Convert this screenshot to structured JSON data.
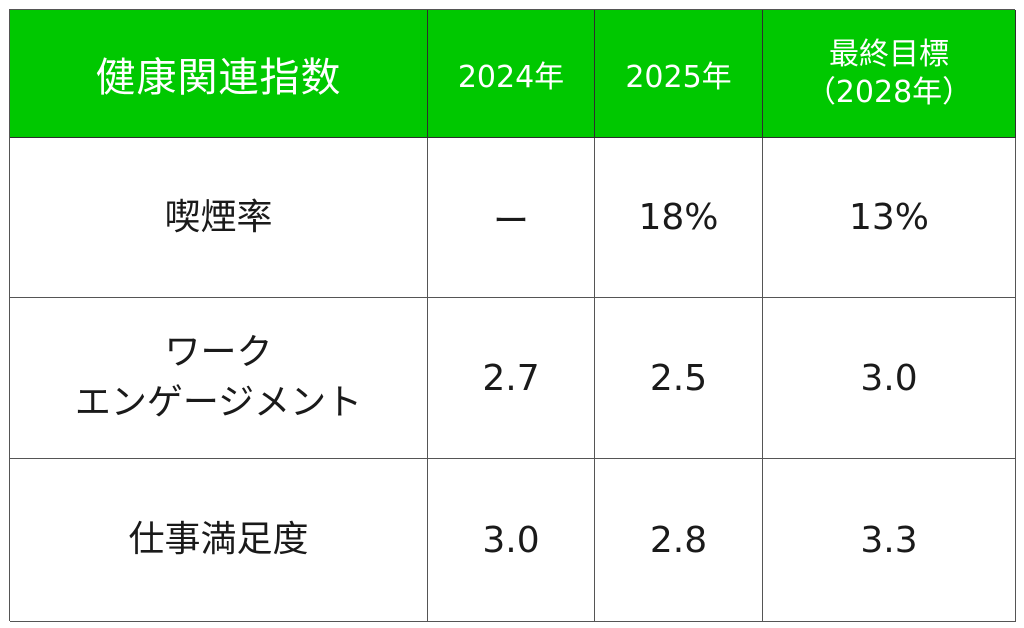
{
  "table": {
    "header": {
      "title": "健康関連指数",
      "col_2024": "2024年",
      "col_2025": "2025年",
      "col_target_line1": "最終目標",
      "col_target_line2": "（2028年）"
    },
    "rows": [
      {
        "label_line1": "喫煙率",
        "label_line2": "",
        "v2024": "ー",
        "v2025": "18%",
        "target": "13%"
      },
      {
        "label_line1": "ワーク",
        "label_line2": "エンゲージメント",
        "v2024": "2.7",
        "v2025": "2.5",
        "target": "3.0"
      },
      {
        "label_line1": "仕事満足度",
        "label_line2": "",
        "v2024": "3.0",
        "v2025": "2.8",
        "target": "3.3"
      }
    ],
    "colors": {
      "header_bg": "#00c800",
      "header_text": "#ffffff",
      "border": "#555555"
    }
  }
}
